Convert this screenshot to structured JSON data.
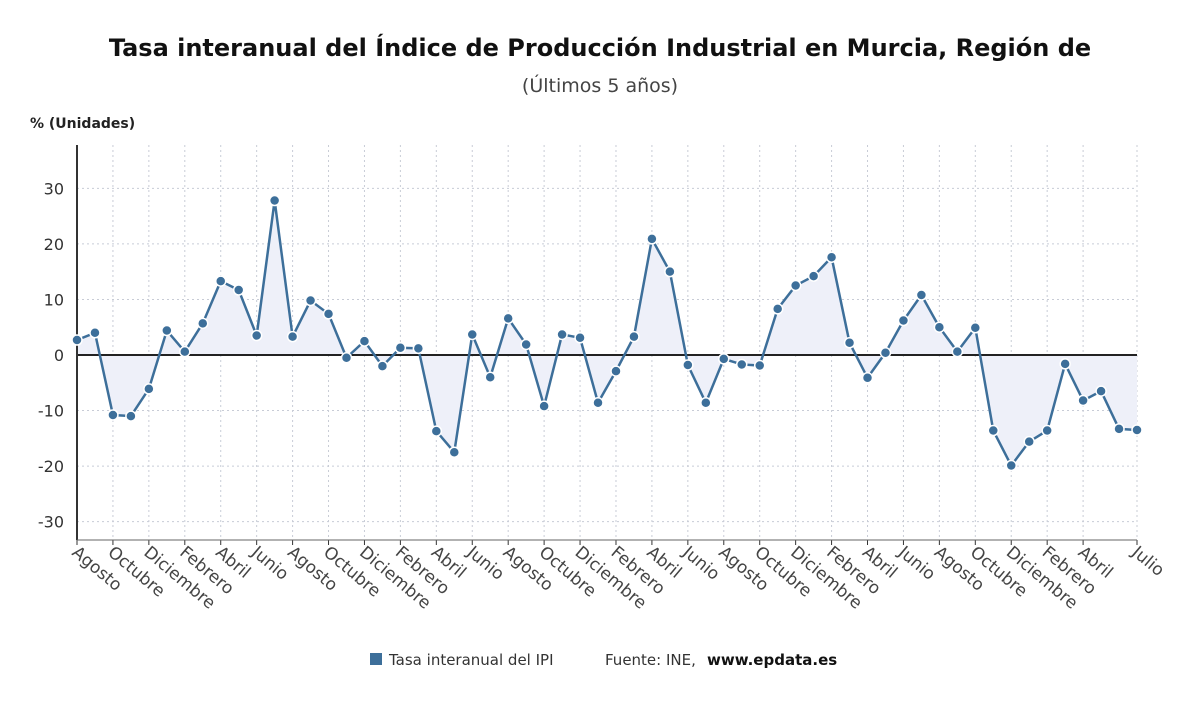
{
  "chart_data": {
    "type": "line",
    "title": "Tasa interanual del Índice de Producción Industrial en Murcia, Región de",
    "subtitle": "(Últimos 5 años)",
    "y_axis_label": "% (Unidades)",
    "source_label": "Fuente: INE,",
    "source_url": "www.epdata.es",
    "categories": [
      "Agosto",
      null,
      "Octubre",
      null,
      "Diciembre",
      null,
      "Febrero",
      null,
      "Abril",
      null,
      "Junio",
      null,
      "Agosto",
      null,
      "Octubre",
      null,
      "Diciembre",
      null,
      "Febrero",
      null,
      "Abril",
      null,
      "Junio",
      null,
      "Agosto",
      null,
      "Octubre",
      null,
      "Diciembre",
      null,
      "Febrero",
      null,
      "Abril",
      null,
      "Junio",
      null,
      "Agosto",
      null,
      "Octubre",
      null,
      "Diciembre",
      null,
      "Febrero",
      null,
      "Abril",
      null,
      "Junio",
      null,
      "Agosto",
      null,
      "Octubre",
      null,
      "Diciembre",
      null,
      "Febrero",
      null,
      "Abril",
      null,
      null,
      "Julio"
    ],
    "series": [
      {
        "name": "Tasa interanual del IPI",
        "color": "#3d6f9a",
        "values": [
          2.7,
          4.0,
          -10.8,
          -11.0,
          -6.1,
          4.4,
          0.6,
          5.7,
          13.3,
          11.7,
          3.5,
          27.8,
          3.3,
          9.8,
          7.4,
          -0.5,
          2.5,
          -2.0,
          1.3,
          1.2,
          -13.7,
          -17.5,
          3.7,
          -4.0,
          6.6,
          1.9,
          -9.2,
          3.7,
          3.1,
          -8.6,
          -2.9,
          3.3,
          20.9,
          15.0,
          -1.8,
          -8.6,
          -0.7,
          -1.7,
          -1.9,
          8.3,
          12.5,
          14.2,
          17.6,
          2.2,
          -4.1,
          0.4,
          6.2,
          10.8,
          5.0,
          0.6,
          4.9,
          -13.6,
          -19.9,
          -15.6,
          -13.6,
          -1.6,
          -8.2,
          -6.5,
          -13.3,
          -13.5
        ]
      }
    ],
    "ylim": [
      -33.3,
      37.8
    ],
    "yticks": [
      -30,
      -20,
      -10,
      0,
      10,
      20,
      30
    ],
    "grid": true,
    "area_fill": "#eef0f9"
  }
}
